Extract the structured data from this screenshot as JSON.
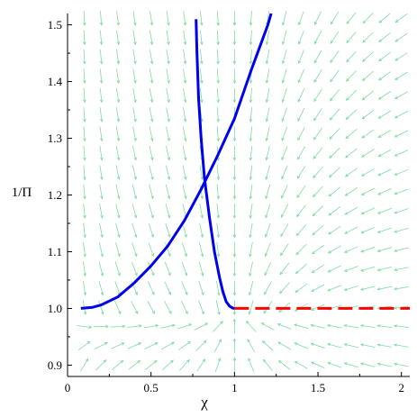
{
  "chart_data": {
    "type": "line",
    "title": "",
    "xlabel": "χ",
    "ylabel": "1/Π",
    "xlim": [
      0,
      2.05
    ],
    "ylim": [
      0.88,
      1.52
    ],
    "x_ticks": [
      {
        "value": 0,
        "label": "0"
      },
      {
        "value": 0.5,
        "label": "0.5"
      },
      {
        "value": 1,
        "label": "1"
      },
      {
        "value": 1.5,
        "label": "1.5"
      },
      {
        "value": 2,
        "label": "2"
      }
    ],
    "y_ticks": [
      {
        "value": 0.9,
        "label": "0.9"
      },
      {
        "value": 1.0,
        "label": "1.0"
      },
      {
        "value": 1.1,
        "label": "1.1"
      },
      {
        "value": 1.2,
        "label": "1.2"
      },
      {
        "value": 1.3,
        "label": "1.3"
      },
      {
        "value": 1.4,
        "label": "1.4"
      },
      {
        "value": 1.5,
        "label": "1.5"
      }
    ],
    "grid": false,
    "legend": "none",
    "direction_field": {
      "color": "#7fdc9f",
      "x_start": 0.1,
      "x_step": 0.1,
      "x_count": 20,
      "y_start": 0.9,
      "y_step": 0.034,
      "y_count": 19
    },
    "series": [
      {
        "color": "#0000ee",
        "style": "solid",
        "x": [
          0.08,
          0.15,
          0.2,
          0.3,
          0.4,
          0.5,
          0.6,
          0.7,
          0.8,
          0.9,
          1.0,
          1.1,
          1.2,
          1.22
        ],
        "y": [
          1.0,
          1.002,
          1.006,
          1.02,
          1.045,
          1.075,
          1.11,
          1.155,
          1.21,
          1.27,
          1.335,
          1.42,
          1.5,
          1.52
        ]
      },
      {
        "color": "#0000ee",
        "style": "solid",
        "x": [
          0.77,
          0.775,
          0.785,
          0.8,
          0.82,
          0.85,
          0.88,
          0.91,
          0.93,
          0.95,
          0.97,
          0.99,
          1.0
        ],
        "y": [
          1.51,
          1.45,
          1.37,
          1.3,
          1.23,
          1.16,
          1.1,
          1.055,
          1.03,
          1.012,
          1.004,
          1.0005,
          1.0
        ]
      },
      {
        "color": "#ff0000",
        "style": "dashed",
        "x": [
          1.0,
          2.05
        ],
        "y": [
          1.0,
          1.0
        ]
      }
    ]
  }
}
